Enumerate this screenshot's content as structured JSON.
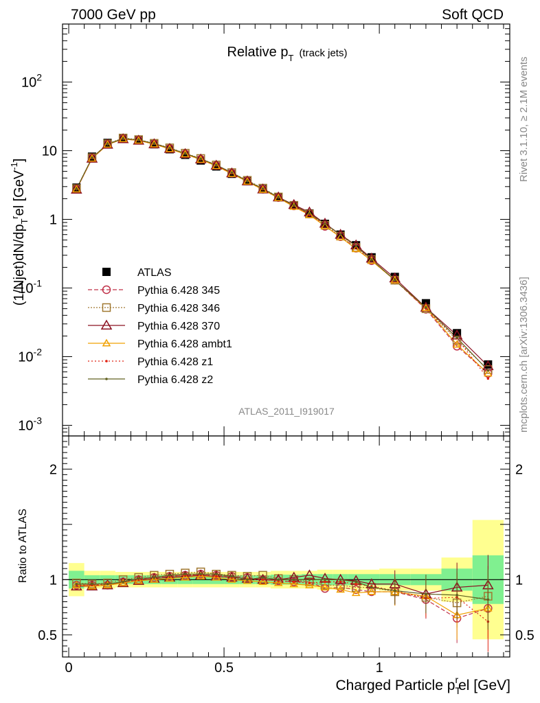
{
  "header": {
    "left": "7000 GeV pp",
    "right": "Soft QCD"
  },
  "title": {
    "main": "Relative p",
    "sub": "T",
    "note": "(track jets)"
  },
  "side_labels": {
    "rivet": "Rivet 3.1.10, ≥ 2.1M events",
    "site": "mcplots.cern.ch [arXiv:1306.3436]"
  },
  "watermark": "ATLAS_2011_I919017",
  "axes": {
    "ylabel_main": "(1/Njet)dN/dp",
    "ylabel_main_sub": "T",
    "ylabel_main_sup": "r",
    "ylabel_main_tail": "el [GeV",
    "ylabel_main_unit_sup": "-1",
    "ylabel_ratio": "Ratio to ATLAS",
    "xlabel": "Charged Particle p",
    "xlabel_sub": "T",
    "xlabel_sup": "r",
    "xlabel_tail": "el [GeV]"
  },
  "colors": {
    "atlas": "#000000",
    "p345": "#c03048",
    "p346": "#a07830",
    "p370": "#8b1020",
    "ambt1": "#f0a000",
    "z1": "#e02010",
    "z2": "#606020",
    "band_inner": "#80f090",
    "band_outer": "#ffff90"
  },
  "chart_data": [
    {
      "type": "scatter",
      "title": "Relative pT (track jets)",
      "xlabel": "Charged Particle pTrel [GeV]",
      "ylabel": "(1/Njet)dN/dpTrel [GeV^-1]",
      "yscale": "log",
      "xlim": [
        -0.02,
        1.42
      ],
      "ylim": [
        0.0007,
        700
      ],
      "y_ticks": [
        "10^-3",
        "10^-2",
        "10^-1",
        "1",
        "10",
        "10^2"
      ],
      "x": [
        0.025,
        0.075,
        0.125,
        0.175,
        0.225,
        0.275,
        0.325,
        0.375,
        0.425,
        0.475,
        0.525,
        0.575,
        0.625,
        0.675,
        0.725,
        0.775,
        0.825,
        0.875,
        0.925,
        0.975,
        1.05,
        1.15,
        1.25,
        1.35
      ],
      "series": [
        {
          "name": "ATLAS",
          "values": [
            2.9,
            8.2,
            13.0,
            15.3,
            14.2,
            12.4,
            10.5,
            8.7,
            7.2,
            5.9,
            4.6,
            3.6,
            2.75,
            2.1,
            1.6,
            1.22,
            0.86,
            0.6,
            0.42,
            0.28,
            0.145,
            0.06,
            0.022,
            0.0077
          ]
        },
        {
          "name": "Pythia 6.428 345",
          "values": [
            2.75,
            7.8,
            12.4,
            15.0,
            14.3,
            12.6,
            10.8,
            9.0,
            7.5,
            6.1,
            4.7,
            3.65,
            2.75,
            2.08,
            1.57,
            1.2,
            0.79,
            0.56,
            0.38,
            0.25,
            0.13,
            0.049,
            0.0142,
            0.0057
          ]
        },
        {
          "name": "Pythia 6.428 346",
          "values": [
            2.8,
            7.9,
            12.6,
            15.3,
            14.5,
            12.8,
            11.0,
            9.2,
            7.7,
            6.2,
            4.8,
            3.7,
            2.85,
            2.12,
            1.6,
            1.2,
            0.82,
            0.57,
            0.39,
            0.26,
            0.13,
            0.05,
            0.0174,
            0.0065
          ]
        },
        {
          "name": "Pythia 6.428 370",
          "values": [
            2.72,
            7.7,
            12.3,
            14.8,
            14.1,
            12.5,
            10.7,
            9.0,
            7.5,
            6.1,
            4.7,
            3.6,
            2.75,
            2.1,
            1.63,
            1.27,
            0.87,
            0.6,
            0.42,
            0.27,
            0.139,
            0.052,
            0.0205,
            0.0073
          ]
        },
        {
          "name": "Pythia 6.428 ambt1",
          "values": [
            2.75,
            7.7,
            12.3,
            14.8,
            14.1,
            12.4,
            10.6,
            8.9,
            7.4,
            6.0,
            4.6,
            3.55,
            2.7,
            2.05,
            1.53,
            1.16,
            0.8,
            0.55,
            0.37,
            0.25,
            0.13,
            0.051,
            0.015,
            0.0057
          ]
        },
        {
          "name": "Pythia 6.428 z1",
          "values": [
            2.75,
            7.8,
            12.4,
            14.9,
            14.3,
            12.6,
            10.8,
            9.1,
            7.5,
            6.1,
            4.7,
            3.6,
            2.75,
            2.08,
            1.58,
            1.18,
            0.85,
            0.59,
            0.4,
            0.26,
            0.13,
            0.05,
            0.0185,
            0.0048
          ]
        },
        {
          "name": "Pythia 6.428 z2",
          "values": [
            2.78,
            7.9,
            12.5,
            15.0,
            14.4,
            12.7,
            10.9,
            9.1,
            7.6,
            6.2,
            4.8,
            3.6,
            2.8,
            2.1,
            1.6,
            1.22,
            0.86,
            0.6,
            0.41,
            0.26,
            0.13,
            0.052,
            0.0188,
            0.0063
          ]
        }
      ]
    },
    {
      "type": "scatter",
      "title": "",
      "xlabel": "Charged Particle pTrel [GeV]",
      "ylabel": "Ratio to ATLAS",
      "xlim": [
        -0.02,
        1.42
      ],
      "ylim": [
        0.3,
        2.3
      ],
      "y_ticks": [
        0.5,
        1,
        2
      ],
      "x_ticks": [
        0,
        0.5,
        1
      ],
      "x": [
        0.025,
        0.075,
        0.125,
        0.175,
        0.225,
        0.275,
        0.325,
        0.375,
        0.425,
        0.475,
        0.525,
        0.575,
        0.625,
        0.675,
        0.725,
        0.775,
        0.825,
        0.875,
        0.925,
        0.975,
        1.05,
        1.15,
        1.25,
        1.35
      ],
      "bin_edges": [
        0.0,
        0.05,
        0.1,
        0.15,
        0.2,
        0.25,
        0.3,
        0.35,
        0.4,
        0.45,
        0.5,
        0.55,
        0.6,
        0.65,
        0.7,
        0.75,
        0.8,
        0.85,
        0.9,
        0.95,
        1.0,
        1.1,
        1.2,
        1.3,
        1.4
      ],
      "band_inner": [
        0.08,
        0.04,
        0.04,
        0.04,
        0.04,
        0.04,
        0.04,
        0.04,
        0.04,
        0.04,
        0.04,
        0.04,
        0.04,
        0.045,
        0.045,
        0.05,
        0.05,
        0.05,
        0.05,
        0.05,
        0.05,
        0.05,
        0.1,
        0.22
      ],
      "band_outer": [
        0.15,
        0.08,
        0.08,
        0.07,
        0.07,
        0.07,
        0.07,
        0.07,
        0.07,
        0.07,
        0.07,
        0.07,
        0.07,
        0.08,
        0.08,
        0.08,
        0.09,
        0.09,
        0.09,
        0.09,
        0.1,
        0.1,
        0.2,
        0.54
      ],
      "series": [
        {
          "name": "Pythia 6.428 345",
          "values": [
            0.95,
            0.95,
            0.95,
            0.98,
            1.0,
            1.02,
            1.03,
            1.04,
            1.05,
            1.04,
            1.03,
            1.02,
            1.0,
            0.99,
            0.98,
            0.98,
            0.92,
            0.93,
            0.91,
            0.89,
            0.89,
            0.82,
            0.65,
            0.74
          ]
        },
        {
          "name": "Pythia 6.428 346",
          "values": [
            0.97,
            0.96,
            0.97,
            1.0,
            1.02,
            1.04,
            1.05,
            1.06,
            1.07,
            1.05,
            1.04,
            1.03,
            1.04,
            1.01,
            1.0,
            0.98,
            0.95,
            0.95,
            0.93,
            0.93,
            0.89,
            0.84,
            0.79,
            0.85
          ]
        },
        {
          "name": "Pythia 6.428 370",
          "values": [
            0.94,
            0.94,
            0.95,
            0.97,
            0.99,
            1.01,
            1.02,
            1.03,
            1.04,
            1.03,
            1.02,
            1.01,
            1.0,
            1.0,
            1.02,
            1.04,
            1.01,
            1.0,
            0.99,
            0.96,
            0.96,
            0.87,
            0.93,
            0.95
          ]
        },
        {
          "name": "Pythia 6.428 ambt1",
          "values": [
            0.95,
            0.94,
            0.95,
            0.97,
            0.99,
            1.0,
            1.01,
            1.02,
            1.03,
            1.02,
            1.0,
            0.99,
            0.98,
            0.97,
            0.96,
            0.95,
            0.93,
            0.91,
            0.88,
            0.89,
            0.89,
            0.85,
            0.68,
            0.74
          ]
        },
        {
          "name": "Pythia 6.428 z1",
          "values": [
            0.95,
            0.95,
            0.96,
            0.98,
            1.0,
            1.02,
            1.03,
            1.04,
            1.04,
            1.03,
            1.02,
            1.0,
            1.0,
            0.99,
            0.98,
            0.97,
            0.98,
            0.98,
            0.96,
            0.94,
            0.9,
            0.83,
            0.84,
            0.62
          ]
        },
        {
          "name": "Pythia 6.428 z2",
          "values": [
            0.96,
            0.96,
            0.96,
            0.98,
            1.01,
            1.02,
            1.04,
            1.05,
            1.05,
            1.05,
            1.03,
            1.0,
            1.02,
            1.0,
            1.0,
            1.0,
            1.0,
            1.0,
            0.98,
            0.93,
            0.9,
            0.87,
            0.86,
            0.82
          ]
        }
      ]
    }
  ]
}
